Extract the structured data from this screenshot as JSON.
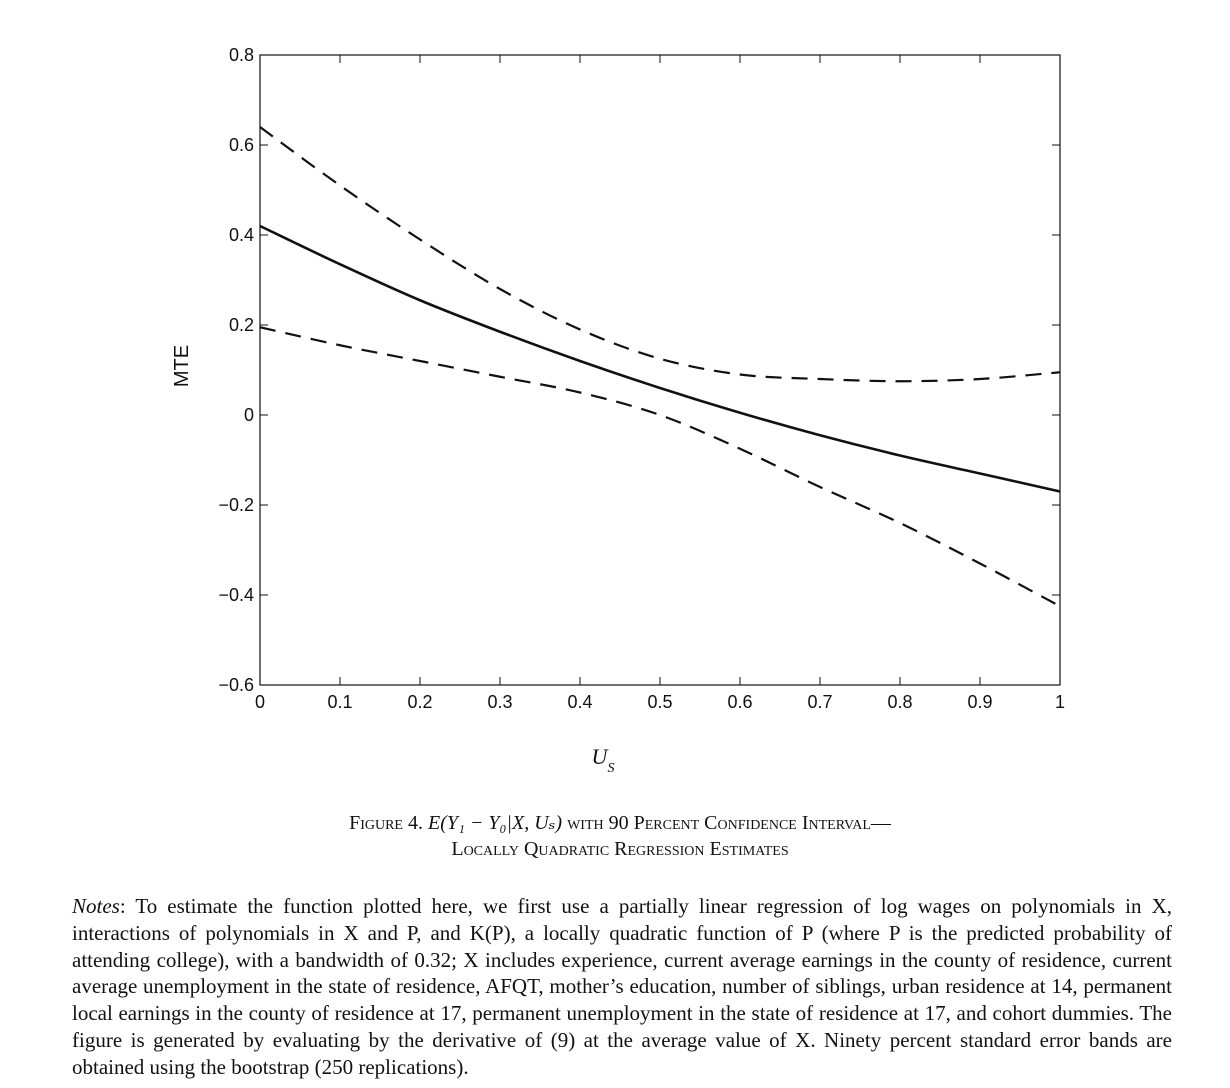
{
  "chart_data": {
    "type": "line",
    "ylabel": "MTE",
    "xlabel": "U",
    "xlabel_sub": "S",
    "xlim": [
      0,
      1
    ],
    "ylim": [
      -0.6,
      0.8
    ],
    "xticks": [
      "0",
      "0.1",
      "0.2",
      "0.3",
      "0.4",
      "0.5",
      "0.6",
      "0.7",
      "0.8",
      "0.9",
      "1"
    ],
    "yticks": [
      "0.8",
      "0.6",
      "0.4",
      "0.2",
      "0",
      "−0.2",
      "−0.4",
      "−0.6"
    ],
    "ytick_values": [
      0.8,
      0.6,
      0.4,
      0.2,
      0,
      -0.2,
      -0.4,
      -0.6
    ],
    "grid": false,
    "x": [
      0,
      0.1,
      0.2,
      0.3,
      0.4,
      0.5,
      0.6,
      0.7,
      0.8,
      0.9,
      1.0
    ],
    "series": [
      {
        "style": "solid",
        "values": [
          0.42,
          0.335,
          0.255,
          0.185,
          0.12,
          0.06,
          0.005,
          -0.045,
          -0.09,
          -0.13,
          -0.17
        ]
      },
      {
        "style": "dashed",
        "values": [
          0.64,
          0.51,
          0.39,
          0.28,
          0.19,
          0.125,
          0.09,
          0.08,
          0.075,
          0.08,
          0.095
        ]
      },
      {
        "style": "dashed",
        "values": [
          0.195,
          0.155,
          0.12,
          0.085,
          0.05,
          0.0,
          -0.075,
          -0.16,
          -0.24,
          -0.33,
          -0.425
        ]
      }
    ]
  },
  "caption": {
    "line1_prefix": "Figure 4. ",
    "line1_formula": "E(Y₁ − Y₀|X, Uₛ)",
    "line1_suffix": " with 90 Percent Confidence Interval—",
    "line2": "Locally Quadratic Regression Estimates"
  },
  "notes": {
    "label": "Notes",
    "text": ": To estimate the function plotted here, we first use a partially linear regression of log wages on polynomials in X, interactions of polynomials in X and P, and K(P), a locally quadratic function of P (where P is the predicted probability of attending college), with a bandwidth of 0.32; X includes experience, current average earnings in the county of residence, current average unemployment in the state of residence, AFQT, mother’s education, number of siblings, urban residence at 14, permanent local earnings in the county of residence at 17, permanent unemployment in the state of residence at 17, and cohort dummies. The figure is generated by evaluating by the derivative of (9) at the average value of X. Ninety percent standard error bands are obtained using the bootstrap (250 replications)."
  }
}
